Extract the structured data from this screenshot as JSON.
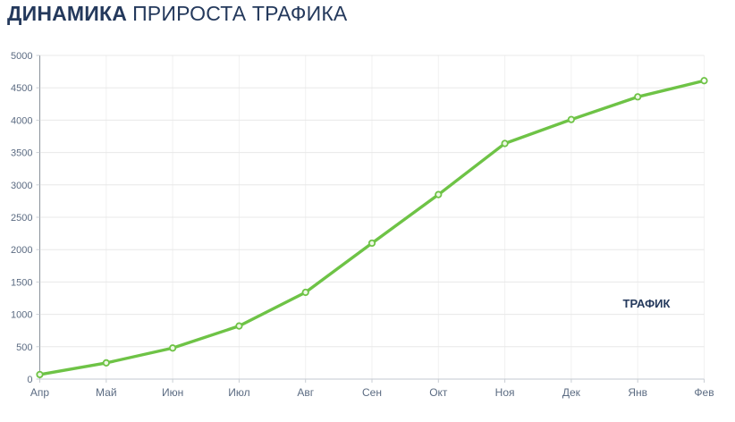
{
  "header": {
    "title_bold": "ДИНАМИКА",
    "title_rest": "ПРИРОСТА ТРАФИКА"
  },
  "legend": {
    "series_label": "ТРАФИК"
  },
  "colors": {
    "title": "#24395c",
    "axis_label": "#5b6b82",
    "grid_horizontal": "#e8e8e8",
    "grid_vertical": "#f1f1f1",
    "axis_line_left": "#8a929b",
    "axis_line_bottom": "#c3c9d0",
    "tick": "#c9ced4",
    "line": "#6ec346",
    "marker_fill": "#eef8e4",
    "marker_last_fill": "#ffffff",
    "series_label": "#24395c"
  },
  "chart_data": {
    "type": "line",
    "title": "ДИНАМИКА ПРИРОСТА ТРАФИКА",
    "categories": [
      "Апр",
      "Май",
      "Июн",
      "Июл",
      "Авг",
      "Сен",
      "Окт",
      "Ноя",
      "Дек",
      "Янв",
      "Фев"
    ],
    "series": [
      {
        "name": "ТРАФИК",
        "values": [
          70,
          250,
          480,
          820,
          1340,
          2100,
          2850,
          3640,
          4010,
          4360,
          4610
        ]
      }
    ],
    "xlabel": "",
    "ylabel": "",
    "ylim": [
      0,
      5000
    ],
    "ytick_step": 500,
    "grid": true,
    "legend_position": "inside-right"
  }
}
